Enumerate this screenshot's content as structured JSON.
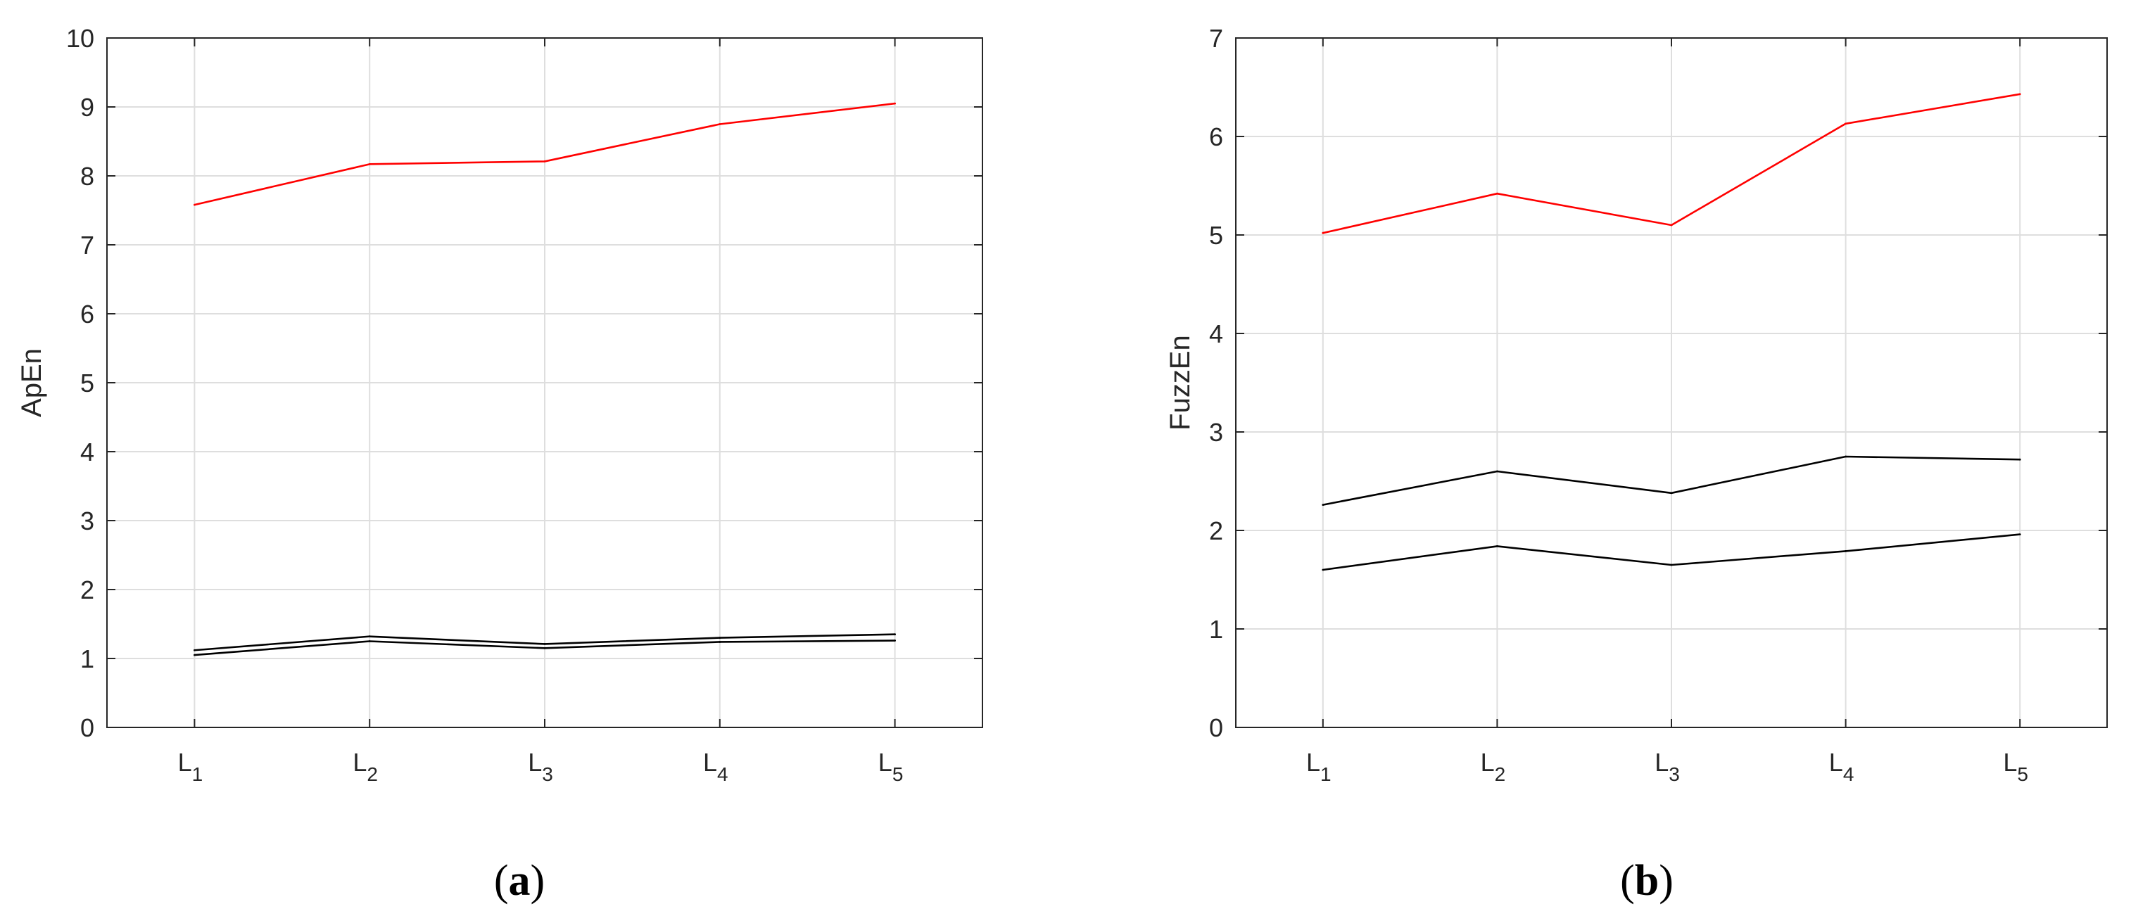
{
  "chart_data": [
    {
      "type": "line",
      "panel_label": "(a)",
      "categories": [
        "L1",
        "L2",
        "L3",
        "L4",
        "L5"
      ],
      "category_parts": [
        {
          "main": "L",
          "sub": "1"
        },
        {
          "main": "L",
          "sub": "2"
        },
        {
          "main": "L",
          "sub": "3"
        },
        {
          "main": "L",
          "sub": "4"
        },
        {
          "main": "L",
          "sub": "5"
        }
      ],
      "xlabel": "",
      "ylabel": "ApEn",
      "ylim": [
        0,
        10
      ],
      "yticks": [
        0,
        1,
        2,
        3,
        4,
        5,
        6,
        7,
        8,
        9,
        10
      ],
      "grid": true,
      "series": [
        {
          "color": "#ff0000",
          "values": [
            7.58,
            8.17,
            8.21,
            8.75,
            9.05
          ]
        },
        {
          "color": "#000000",
          "values": [
            1.12,
            1.32,
            1.21,
            1.3,
            1.35
          ]
        },
        {
          "color": "#000000",
          "values": [
            1.05,
            1.25,
            1.15,
            1.24,
            1.26
          ]
        }
      ]
    },
    {
      "type": "line",
      "panel_label": "(b)",
      "categories": [
        "L1",
        "L2",
        "L3",
        "L4",
        "L5"
      ],
      "category_parts": [
        {
          "main": "L",
          "sub": "1"
        },
        {
          "main": "L",
          "sub": "2"
        },
        {
          "main": "L",
          "sub": "3"
        },
        {
          "main": "L",
          "sub": "4"
        },
        {
          "main": "L",
          "sub": "5"
        }
      ],
      "xlabel": "",
      "ylabel": "FuzzEn",
      "ylim": [
        0,
        7
      ],
      "yticks": [
        0,
        1,
        2,
        3,
        4,
        5,
        6,
        7
      ],
      "grid": true,
      "series": [
        {
          "color": "#ff0000",
          "values": [
            5.02,
            5.42,
            5.1,
            6.13,
            6.43
          ]
        },
        {
          "color": "#000000",
          "values": [
            2.26,
            2.6,
            2.38,
            2.75,
            2.72
          ]
        },
        {
          "color": "#000000",
          "values": [
            1.6,
            1.84,
            1.65,
            1.79,
            1.96
          ]
        }
      ]
    }
  ]
}
